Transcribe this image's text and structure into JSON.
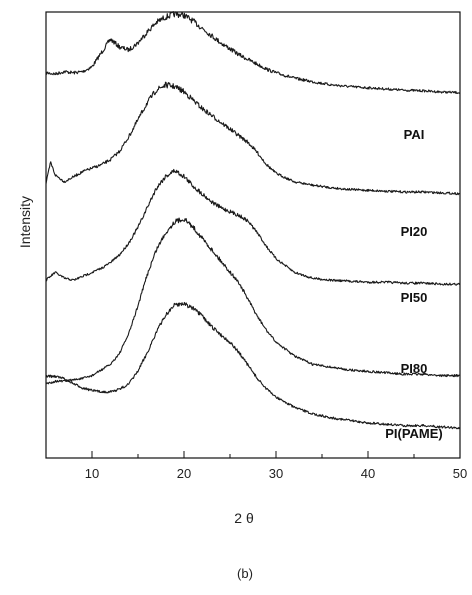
{
  "chart_data": {
    "type": "line",
    "subplot_label": "(b)",
    "xlabel": "2 θ",
    "ylabel": "Intensity",
    "xlim": [
      5,
      50
    ],
    "xticks": [
      10,
      20,
      30,
      40,
      50
    ],
    "yticks": [],
    "grid": false,
    "legend": "none",
    "series": [
      {
        "name": "PAI",
        "points": [
          [
            5,
            0.62
          ],
          [
            6,
            0.6
          ],
          [
            7,
            0.64
          ],
          [
            8,
            0.62
          ],
          [
            9,
            0.64
          ],
          [
            10,
            0.72
          ],
          [
            11,
            0.95
          ],
          [
            12,
            1.18
          ],
          [
            13,
            1.05
          ],
          [
            14,
            1.0
          ],
          [
            15,
            1.12
          ],
          [
            16,
            1.3
          ],
          [
            17,
            1.46
          ],
          [
            18,
            1.55
          ],
          [
            19,
            1.6
          ],
          [
            20,
            1.58
          ],
          [
            21,
            1.48
          ],
          [
            22,
            1.36
          ],
          [
            23,
            1.24
          ],
          [
            24,
            1.12
          ],
          [
            25,
            1.02
          ],
          [
            26,
            0.92
          ],
          [
            27,
            0.84
          ],
          [
            28,
            0.76
          ],
          [
            29,
            0.68
          ],
          [
            30,
            0.62
          ],
          [
            32,
            0.53
          ],
          [
            34,
            0.47
          ],
          [
            36,
            0.42
          ],
          [
            38,
            0.39
          ],
          [
            40,
            0.37
          ],
          [
            42,
            0.35
          ],
          [
            44,
            0.33
          ],
          [
            46,
            0.32
          ],
          [
            48,
            0.3
          ],
          [
            50,
            0.29
          ]
        ]
      },
      {
        "name": "PI20",
        "points": [
          [
            5,
            0.3
          ],
          [
            5.5,
            0.55
          ],
          [
            6,
            0.4
          ],
          [
            7,
            0.32
          ],
          [
            8,
            0.38
          ],
          [
            9,
            0.44
          ],
          [
            10,
            0.48
          ],
          [
            11,
            0.52
          ],
          [
            12,
            0.58
          ],
          [
            13,
            0.68
          ],
          [
            14,
            0.85
          ],
          [
            15,
            1.05
          ],
          [
            16,
            1.25
          ],
          [
            17,
            1.4
          ],
          [
            18,
            1.46
          ],
          [
            19,
            1.44
          ],
          [
            20,
            1.38
          ],
          [
            21,
            1.28
          ],
          [
            22,
            1.18
          ],
          [
            23,
            1.1
          ],
          [
            24,
            1.02
          ],
          [
            25,
            0.94
          ],
          [
            26,
            0.86
          ],
          [
            27,
            0.78
          ],
          [
            28,
            0.66
          ],
          [
            29,
            0.52
          ],
          [
            30,
            0.42
          ],
          [
            32,
            0.32
          ],
          [
            34,
            0.28
          ],
          [
            36,
            0.25
          ],
          [
            38,
            0.23
          ],
          [
            40,
            0.22
          ],
          [
            42,
            0.21
          ],
          [
            44,
            0.2
          ],
          [
            46,
            0.2
          ],
          [
            48,
            0.19
          ],
          [
            50,
            0.18
          ]
        ]
      },
      {
        "name": "PI50",
        "points": [
          [
            5,
            0.1
          ],
          [
            6,
            0.18
          ],
          [
            7,
            0.12
          ],
          [
            8,
            0.1
          ],
          [
            9,
            0.14
          ],
          [
            10,
            0.18
          ],
          [
            11,
            0.22
          ],
          [
            12,
            0.28
          ],
          [
            13,
            0.36
          ],
          [
            14,
            0.48
          ],
          [
            15,
            0.64
          ],
          [
            16,
            0.84
          ],
          [
            17,
            1.04
          ],
          [
            18,
            1.16
          ],
          [
            19,
            1.22
          ],
          [
            20,
            1.16
          ],
          [
            21,
            1.06
          ],
          [
            22,
            0.98
          ],
          [
            23,
            0.9
          ],
          [
            24,
            0.84
          ],
          [
            25,
            0.8
          ],
          [
            26,
            0.76
          ],
          [
            27,
            0.7
          ],
          [
            28,
            0.58
          ],
          [
            29,
            0.44
          ],
          [
            30,
            0.32
          ],
          [
            32,
            0.18
          ],
          [
            34,
            0.12
          ],
          [
            36,
            0.1
          ],
          [
            38,
            0.09
          ],
          [
            40,
            0.08
          ],
          [
            42,
            0.08
          ],
          [
            44,
            0.07
          ],
          [
            46,
            0.07
          ],
          [
            48,
            0.06
          ],
          [
            50,
            0.06
          ]
        ]
      },
      {
        "name": "PI80",
        "points": [
          [
            5,
            0.0
          ],
          [
            6,
            0.02
          ],
          [
            7,
            0.02
          ],
          [
            8,
            0.03
          ],
          [
            9,
            0.04
          ],
          [
            10,
            0.06
          ],
          [
            11,
            0.1
          ],
          [
            12,
            0.14
          ],
          [
            13,
            0.22
          ],
          [
            14,
            0.36
          ],
          [
            15,
            0.56
          ],
          [
            16,
            0.78
          ],
          [
            17,
            0.96
          ],
          [
            18,
            1.08
          ],
          [
            19,
            1.16
          ],
          [
            20,
            1.18
          ],
          [
            21,
            1.12
          ],
          [
            22,
            1.04
          ],
          [
            23,
            0.96
          ],
          [
            24,
            0.88
          ],
          [
            25,
            0.8
          ],
          [
            26,
            0.72
          ],
          [
            27,
            0.6
          ],
          [
            28,
            0.48
          ],
          [
            29,
            0.38
          ],
          [
            30,
            0.3
          ],
          [
            32,
            0.2
          ],
          [
            34,
            0.14
          ],
          [
            36,
            0.12
          ],
          [
            38,
            0.1
          ],
          [
            40,
            0.09
          ],
          [
            42,
            0.08
          ],
          [
            44,
            0.07
          ],
          [
            46,
            0.07
          ],
          [
            48,
            0.06
          ],
          [
            50,
            0.06
          ]
        ]
      },
      {
        "name": "PI(PAME)",
        "points": [
          [
            5,
            0.46
          ],
          [
            6,
            0.46
          ],
          [
            7,
            0.44
          ],
          [
            8,
            0.4
          ],
          [
            9,
            0.37
          ],
          [
            10,
            0.35
          ],
          [
            11,
            0.34
          ],
          [
            12,
            0.34
          ],
          [
            13,
            0.36
          ],
          [
            14,
            0.4
          ],
          [
            15,
            0.5
          ],
          [
            16,
            0.64
          ],
          [
            17,
            0.8
          ],
          [
            18,
            0.93
          ],
          [
            19,
            1.01
          ],
          [
            20,
            1.02
          ],
          [
            21,
            0.98
          ],
          [
            22,
            0.92
          ],
          [
            23,
            0.84
          ],
          [
            24,
            0.78
          ],
          [
            25,
            0.72
          ],
          [
            26,
            0.64
          ],
          [
            27,
            0.54
          ],
          [
            28,
            0.44
          ],
          [
            29,
            0.36
          ],
          [
            30,
            0.3
          ],
          [
            32,
            0.22
          ],
          [
            34,
            0.17
          ],
          [
            36,
            0.14
          ],
          [
            38,
            0.12
          ],
          [
            40,
            0.1
          ],
          [
            42,
            0.09
          ],
          [
            44,
            0.08
          ],
          [
            46,
            0.08
          ],
          [
            48,
            0.07
          ],
          [
            50,
            0.06
          ]
        ]
      }
    ]
  }
}
